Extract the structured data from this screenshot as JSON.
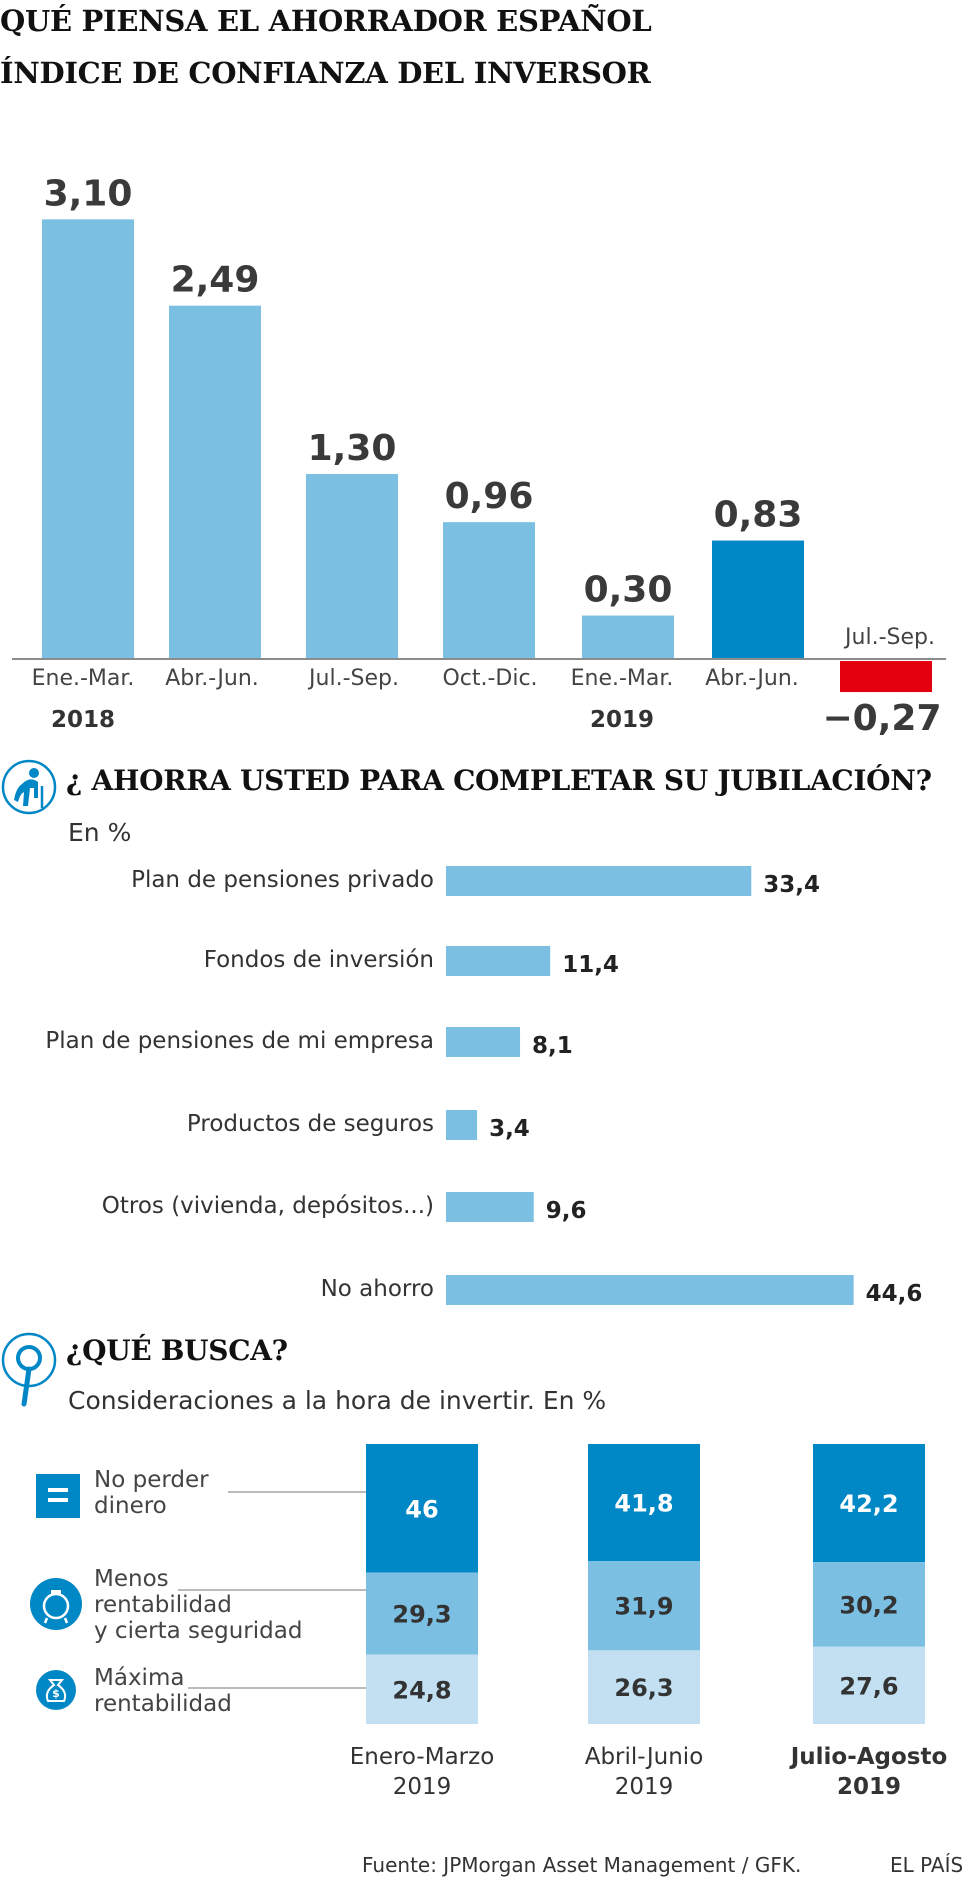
{
  "header": {
    "title": "QUÉ PIENSA EL AHORRADOR ESPAÑOL",
    "subtitle": "ÍNDICE DE CONFIANZA DEL INVERSOR"
  },
  "retirement": {
    "title": "¿ AHORRA USTED PARA COMPLETAR SU JUBILACIÓN?",
    "unit": "En %",
    "icon": "elderly-person-icon"
  },
  "search": {
    "title": "¿QUÉ BUSCA?",
    "subtitle": "Consideraciones a la hora de invertir. En %",
    "icon": "magnifier-icon"
  },
  "footer": {
    "source": "Fuente: JPMorgan Asset Management / GFK.",
    "brand": "EL PAÍS"
  },
  "colors": {
    "light_blue": "#7bbfe3",
    "dark_blue": "#0087c6",
    "pale_blue": "#c2e0f2",
    "red": "#e3000f"
  },
  "chart_data": [
    {
      "type": "bar",
      "categories": [
        "Ene.-Mar.",
        "Abr.-Jun.",
        "Jul.-Sep.",
        "Oct.-Dic.",
        "Ene.-Mar.",
        "Abr.-Jun.",
        "Jul.-Sep."
      ],
      "years": [
        {
          "label": "2018",
          "index": 0
        },
        {
          "label": "2019",
          "index": 4
        }
      ],
      "values": [
        3.1,
        2.49,
        1.3,
        0.96,
        0.3,
        0.83,
        -0.27
      ],
      "value_labels": [
        "3,10",
        "2,49",
        "1,30",
        "0,96",
        "0,30",
        "0,83",
        "−0,27"
      ],
      "highlight": [
        {
          "index": 5,
          "color": "#0087c6"
        },
        {
          "index": 6,
          "color": "#e3000f"
        }
      ],
      "ylim": [
        -0.3,
        3.2
      ]
    },
    {
      "type": "bar",
      "orientation": "horizontal",
      "categories": [
        "Plan de pensiones privado",
        "Fondos de inversión",
        "Plan de pensiones de mi empresa",
        "Productos de seguros",
        "Otros (vivienda, depósitos...)",
        "No ahorro"
      ],
      "values": [
        33.4,
        11.4,
        8.1,
        3.4,
        9.6,
        44.6
      ],
      "value_labels": [
        "33,4",
        "11,4",
        "8,1",
        "3,4",
        "9,6",
        "44,6"
      ]
    },
    {
      "type": "bar",
      "stacked": true,
      "categories": [
        "Enero-Marzo\n2019",
        "Abril-Junio\n2019",
        "Julio-Agosto\n2019"
      ],
      "category_lines": [
        [
          "Enero-Marzo",
          "2019"
        ],
        [
          "Abril-Junio",
          "2019"
        ],
        [
          "Julio-Agosto",
          "2019"
        ]
      ],
      "bold_category": 2,
      "series": [
        {
          "name": "No perder dinero",
          "legend_lines": [
            "No perder",
            "dinero"
          ],
          "icon": "equals-icon",
          "color": "#0087c6",
          "values": [
            46,
            41.8,
            42.2
          ],
          "value_labels": [
            "46",
            "41,8",
            "42,2"
          ]
        },
        {
          "name": "Menos rentabilidad y cierta seguridad",
          "legend_lines": [
            "Menos",
            "rentabilidad",
            "y cierta seguridad"
          ],
          "icon": "piggy-bank-icon",
          "color": "#7bbfe3",
          "values": [
            29.3,
            31.9,
            30.2
          ],
          "value_labels": [
            "29,3",
            "31,9",
            "30,2"
          ]
        },
        {
          "name": "Máxima rentabilidad",
          "legend_lines": [
            "Máxima",
            "rentabilidad"
          ],
          "icon": "money-bag-icon",
          "color": "#c2e0f2",
          "values": [
            24.8,
            26.3,
            27.6
          ],
          "value_labels": [
            "24,8",
            "26,3",
            "27,6"
          ]
        }
      ]
    }
  ]
}
